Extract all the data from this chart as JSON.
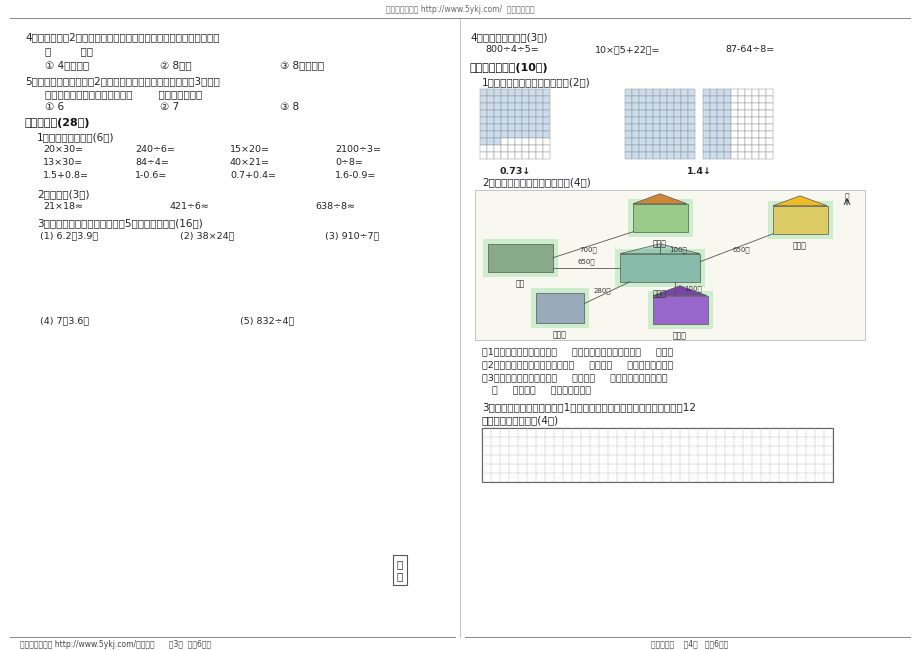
{
  "bg_color": "#ffffff",
  "header_text": "由莲山课件提供 http://www.5ykj.com/  资源全部免费",
  "footer_left": "由莲山课件提供 http://www.5ykj.com/年级数学      第3页  （共6页）",
  "footer_right": "三年级数学    第4页   （共6页）",
  "left_col": {
    "q4_text": "4、用两个边长2分米的正方形拼成一个长方形，这个长方形的面积是",
    "q4_blank": "（         ）。",
    "q4_opts": [
      "① 4平方分米",
      "② 8分米",
      "③ 8平方分米"
    ],
    "q5_text": "5、一头猪的重量相当于2只羊的重量，一头牛的重量相当于3头猪的",
    "q5_text2": "重量，那一头牛的重量相当于（        ）只羊的重量。",
    "q5_opts": [
      "① 6",
      "② 7",
      "③ 8"
    ],
    "section4_title": "四、计算。(28分)",
    "sub1_title": "1、直接写出得数。(6分)",
    "calc_rows": [
      [
        "20×30=",
        "240÷6=",
        "15×20=",
        "2100÷3="
      ],
      [
        "13×30=",
        "84÷4=",
        "40×21=",
        "0÷8="
      ],
      [
        "1.5+0.8=",
        "1-0.6=",
        "0.7+0.4=",
        "1.6-0.9="
      ]
    ],
    "sub2_title": "2、估算。(3分)",
    "est_row": [
      "21×18≈",
      "421÷6≈",
      "638÷8≈"
    ],
    "sub3_title": "3、列竖式计算下面各题，第（5）小题要验算。(16分)",
    "vert_row": [
      "(1) 6.2＋3.9＝",
      "(2) 38×24＝",
      "(3) 910÷7＝"
    ],
    "vert_row2": [
      "(4) 7－3.6＝",
      "(5) 832÷4＝"
    ],
    "jisuan_label": "验\n算"
  },
  "right_col": {
    "q4r_title": "4、直接写出得数。(3分)",
    "q4r_row": [
      "800÷4÷5=",
      "10×（5+22）=",
      "87-64÷8="
    ],
    "section5_title": "五、动手操作。(10分)",
    "sub1_title": "1、看小数涂上你喜欢的颜色。(2分)",
    "decimal1": "0.73↓",
    "decimal2": "1.4↓",
    "sub2_title": "2、根据下图完成后面的填空。(4分)",
    "q_fill1": "（1）电影院位于李强家的（     ）面，体育馆在电影院的（     ）面。",
    "q_fill2": "（2）李强从图书馆到电影院，向（     ）方走（     ）米到了电影院。",
    "q_fill3": "（3）李强放学回家，先向（     ）方走（     ）米到了电影院，再向",
    "q_fill4": "（     ）方走（     ）米就回到家。",
    "sub3_title": "3、下面每个小方格都是边长1厘米的正方形，请在方格中画出两个面积12",
    "sub3_text2": "平方厘米的长方形。(4分)"
  }
}
